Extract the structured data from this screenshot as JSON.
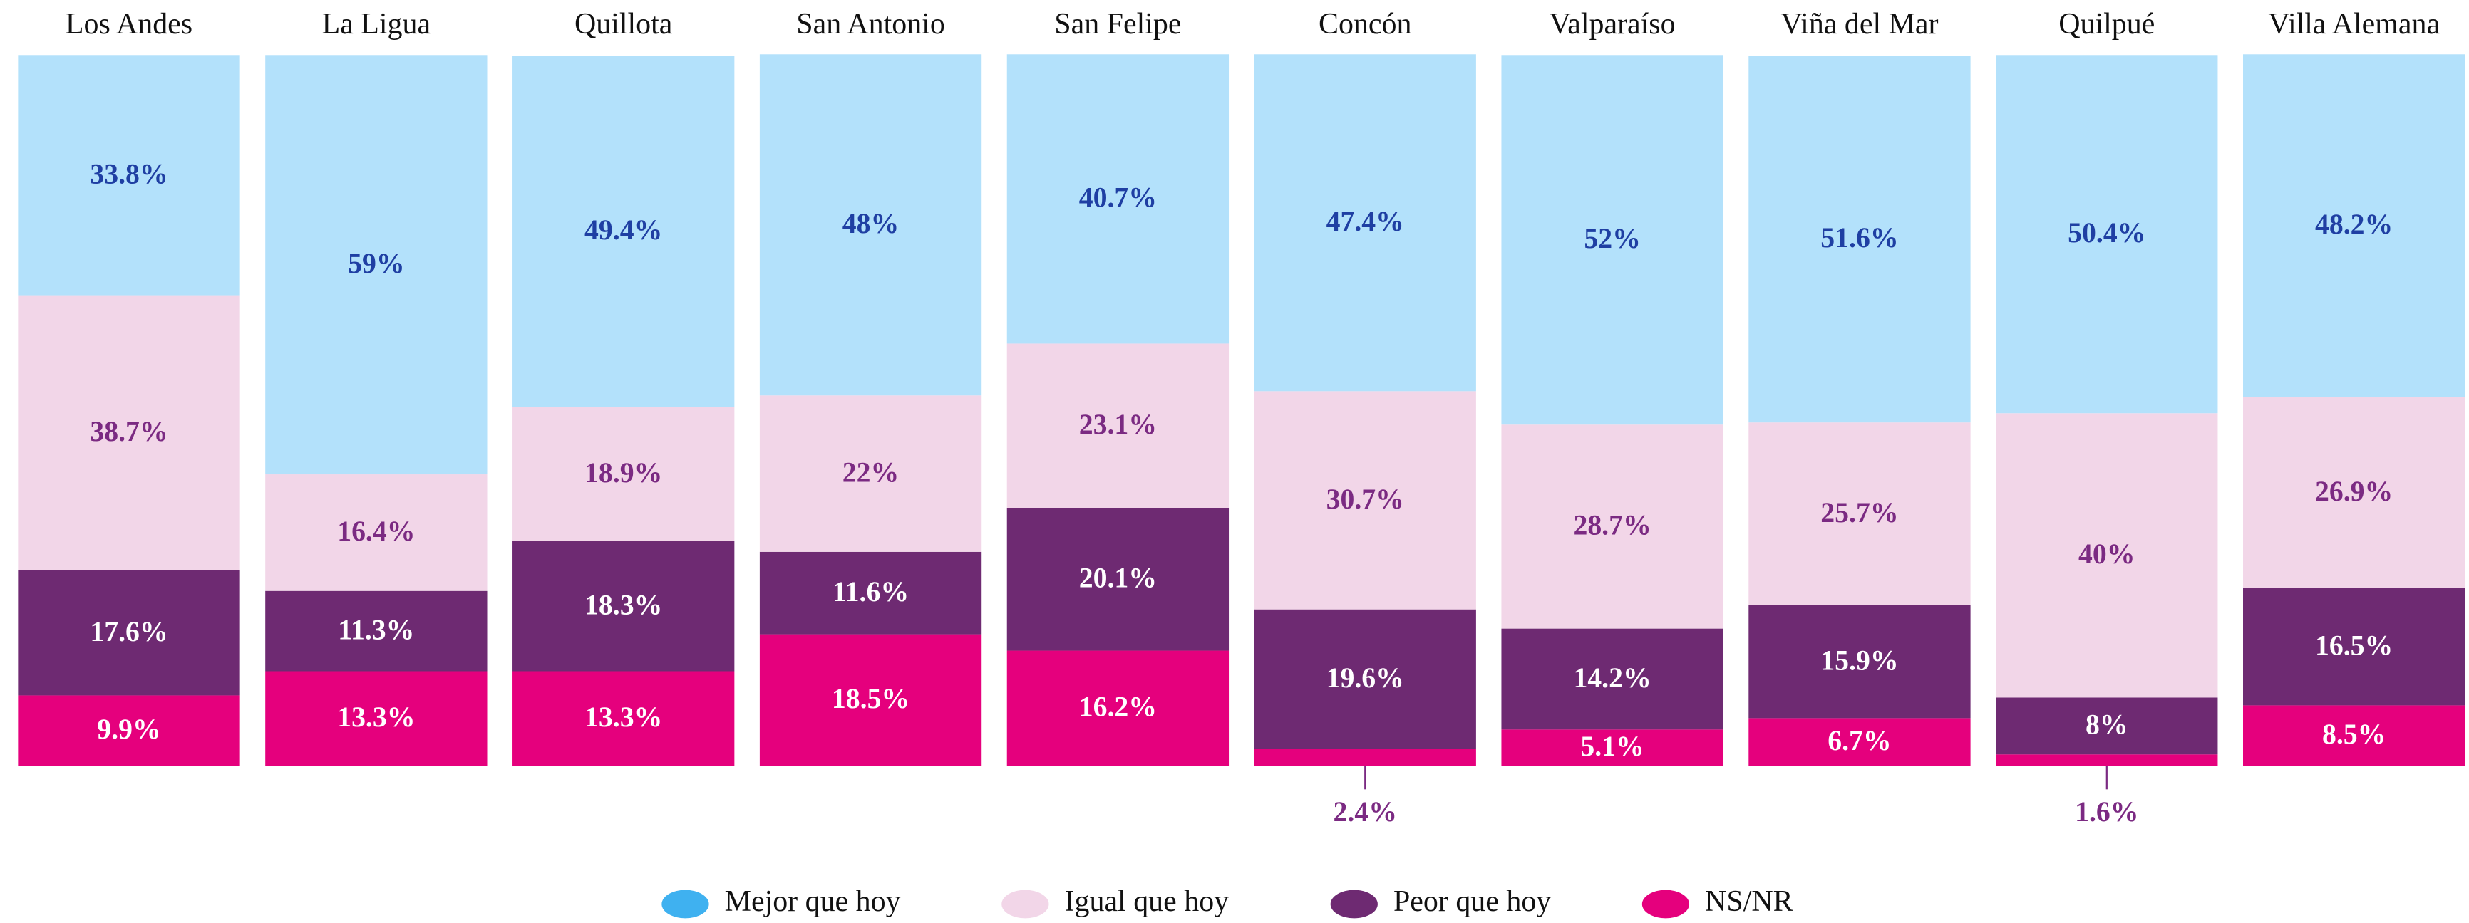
{
  "chart_data": {
    "type": "stacked_bar",
    "categories": [
      "Los Andes",
      "La Ligua",
      "Quillota",
      "San Antonio",
      "San Felipe",
      "Concón",
      "Valparaíso",
      "Viña del Mar",
      "Quilpué",
      "Villa Alemana"
    ],
    "ylim": [
      0,
      100
    ],
    "legend": "bottom",
    "series": [
      {
        "name": "Mejor que hoy",
        "color": "#b3e1fb",
        "legend_color": "#3fb1f0",
        "label_color": "#1f3fa3",
        "values": [
          33.8,
          59,
          49.4,
          48,
          40.7,
          47.4,
          52,
          51.6,
          50.4,
          48.2
        ],
        "value_labels": [
          "33.8%",
          "59%",
          "49.4%",
          "48%",
          "40.7%",
          "47.4%",
          "52%",
          "51.6%",
          "50.4%",
          "48.2%"
        ]
      },
      {
        "name": "Igual que hoy",
        "color": "#f2d6e8",
        "legend_color": "#f2d6e8",
        "label_color": "#7b2a82",
        "values": [
          38.7,
          16.4,
          18.9,
          22,
          23.1,
          30.7,
          28.7,
          25.7,
          40,
          26.9
        ],
        "value_labels": [
          "38.7%",
          "16.4%",
          "18.9%",
          "22%",
          "23.1%",
          "30.7%",
          "28.7%",
          "25.7%",
          "40%",
          "26.9%"
        ]
      },
      {
        "name": "Peor que hoy",
        "color": "#6e2a72",
        "legend_color": "#6e2a72",
        "label_color": "#ffffff",
        "values": [
          17.6,
          11.3,
          18.3,
          11.6,
          20.1,
          19.6,
          14.2,
          15.9,
          8,
          16.5
        ],
        "value_labels": [
          "17.6%",
          "11.3%",
          "18.3%",
          "11.6%",
          "20.1%",
          "19.6%",
          "14.2%",
          "15.9%",
          "8%",
          "16.5%"
        ]
      },
      {
        "name": "NS/NR",
        "color": "#e5007d",
        "legend_color": "#e5007d",
        "label_color": "#ffffff",
        "values": [
          9.9,
          13.3,
          13.3,
          18.5,
          16.2,
          2.4,
          5.1,
          6.7,
          1.6,
          8.5
        ],
        "value_labels": [
          "9.9%",
          "13.3%",
          "13.3%",
          "18.5%",
          "16.2%",
          "2.4%",
          "5.1%",
          "6.7%",
          "1.6%",
          "8.5%"
        ]
      }
    ]
  }
}
